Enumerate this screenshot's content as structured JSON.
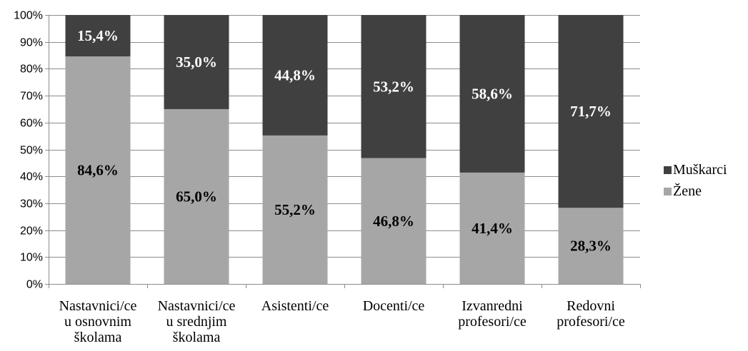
{
  "chart_data": {
    "type": "bar",
    "stacked": true,
    "categories": [
      [
        "Nastavnici/ce",
        "u osnovnim",
        "školama"
      ],
      [
        "Nastavnici/ce",
        "u srednjim",
        "školama"
      ],
      [
        "Asistenti/ce"
      ],
      [
        "Docenti/ce"
      ],
      [
        "Izvanredni",
        "profesori/ce"
      ],
      [
        "Redovni",
        "profesori/ce"
      ]
    ],
    "series": [
      {
        "name": "Žene",
        "values": [
          84.6,
          65.0,
          55.2,
          46.8,
          41.4,
          28.3
        ],
        "labels": [
          "84,6%",
          "65,0%",
          "55,2%",
          "46,8%",
          "41,4%",
          "28,3%"
        ],
        "color": "#a6a6a6",
        "label_color": "#000000"
      },
      {
        "name": "Muškarci",
        "values": [
          15.4,
          35.0,
          44.8,
          53.2,
          58.6,
          71.7
        ],
        "labels": [
          "15,4%",
          "35,0%",
          "44,8%",
          "53,2%",
          "58,6%",
          "71,7%"
        ],
        "color": "#404040",
        "label_color": "#ffffff"
      }
    ],
    "ylim": [
      0,
      100
    ],
    "yticks": [
      "0%",
      "10%",
      "20%",
      "30%",
      "40%",
      "50%",
      "60%",
      "70%",
      "80%",
      "90%",
      "100%"
    ],
    "legend_order": [
      "Muškarci",
      "Žene"
    ],
    "legend_position": "right",
    "grid": true
  }
}
